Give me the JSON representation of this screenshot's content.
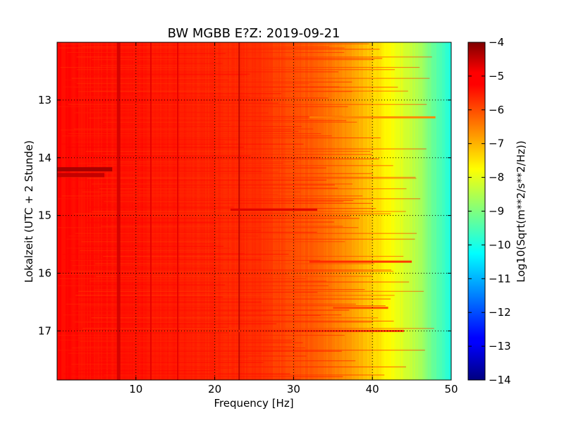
{
  "chart_data": {
    "type": "heatmap",
    "title": "BW MGBB E?Z: 2019-09-21",
    "xlabel": "Frequency [Hz]",
    "ylabel": "Lokalzeit (UTC + 2 Stunde)",
    "xlim": [
      0,
      50
    ],
    "ylim": [
      17.85,
      12.0
    ],
    "x_ticks": [
      10,
      20,
      30,
      40,
      50
    ],
    "y_ticks": [
      13,
      14,
      15,
      16,
      17
    ],
    "grid": true,
    "colorbar": {
      "label": "Log10(Sqrt(m**2/s**2/Hz))",
      "range": [
        -14,
        -4
      ],
      "ticks": [
        -4,
        -5,
        -6,
        -7,
        -8,
        -9,
        -10,
        -11,
        -12,
        -13,
        -14
      ],
      "colormap": "jet"
    },
    "spectral_profile": {
      "frequency_hz": [
        0,
        5,
        10,
        15,
        20,
        25,
        30,
        33,
        36,
        38,
        40,
        42,
        44,
        46,
        48,
        50
      ],
      "value_log10": [
        -5.3,
        -5.4,
        -5.4,
        -5.5,
        -5.6,
        -5.7,
        -6.0,
        -6.2,
        -6.6,
        -6.9,
        -7.3,
        -7.7,
        -8.1,
        -8.6,
        -9.3,
        -10.0
      ]
    },
    "vertical_lines": [
      {
        "frequency_hz": 7.8,
        "value_log10": -4.8
      },
      {
        "frequency_hz": 11.9,
        "value_log10": -5.0
      },
      {
        "frequency_hz": 15.3,
        "value_log10": -5.0
      },
      {
        "frequency_hz": 23.1,
        "value_log10": -4.6
      }
    ],
    "horizontal_bands": [
      {
        "time": 14.2,
        "frequency_range": [
          0,
          7
        ],
        "value_log10": -4.3
      },
      {
        "time": 14.3,
        "frequency_range": [
          0,
          6
        ],
        "value_log10": -4.6
      },
      {
        "time": 14.9,
        "frequency_range": [
          22,
          33
        ],
        "value_log10": -4.9
      },
      {
        "time": 15.8,
        "frequency_range": [
          32,
          45
        ],
        "value_log10": -5.6
      },
      {
        "time": 16.6,
        "frequency_range": [
          35,
          42
        ],
        "value_log10": -5.9
      },
      {
        "time": 17.0,
        "frequency_range": [
          22,
          44
        ],
        "value_log10": -5.6
      },
      {
        "time": 13.3,
        "frequency_range": [
          32,
          48
        ],
        "value_log10": -6.5
      }
    ]
  }
}
